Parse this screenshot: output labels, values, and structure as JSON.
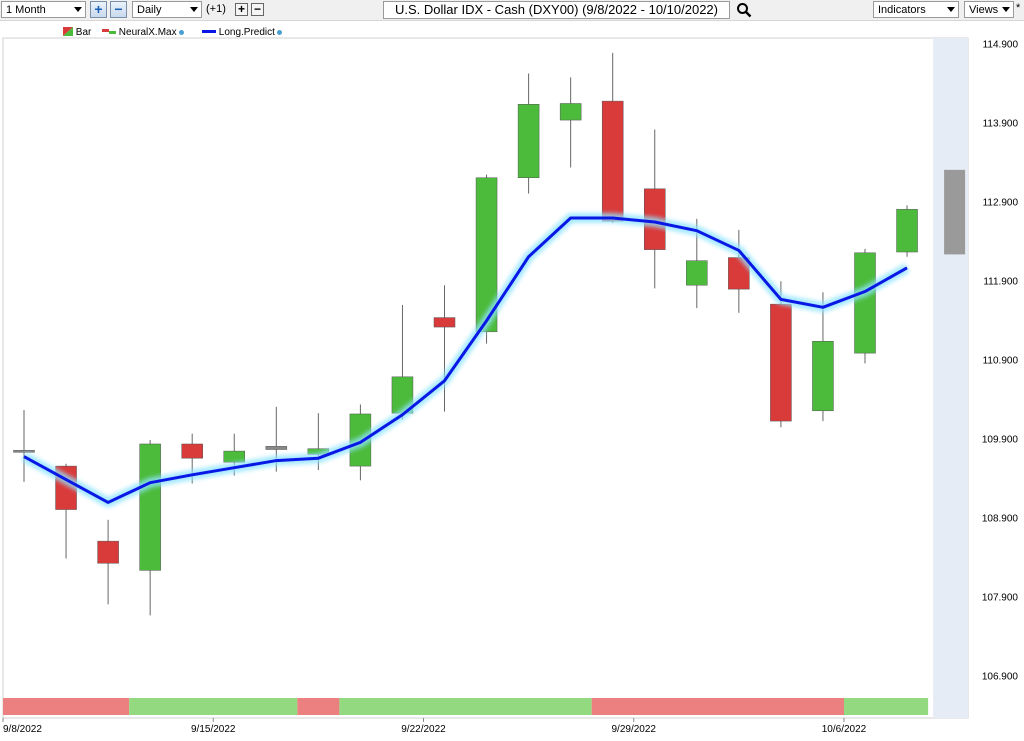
{
  "toolbar": {
    "period": "1 Month",
    "interval": "Daily",
    "offset": "(+1)",
    "title": "U.S. Dollar IDX - Cash (DXY00) (9/8/2022 - 10/10/2022)",
    "indicators_label": "Indicators",
    "views_label": "Views",
    "asterisk": "*"
  },
  "legend": [
    {
      "label": "Bar",
      "icon": "bar-swatch-icon"
    },
    {
      "label": "NeuralX.Max",
      "icon": "neuralx-swatch-icon"
    },
    {
      "label": "Long.Predict",
      "icon": "line-swatch-icon"
    }
  ],
  "colors": {
    "up": "#4cbb3c",
    "down": "#d93a3a",
    "doji": "#888888",
    "predict": "#0a18e6",
    "predict_glow": "#8fe4ff",
    "band_up": "#93d97f",
    "band_down": "#ec8080",
    "future_panel": "#e6ecf5",
    "forecast_box": "#9a9a9a"
  },
  "chart_data": {
    "type": "candlestick",
    "title": "U.S. Dollar IDX - Cash (DXY00) (9/8/2022 - 10/10/2022)",
    "y_ticks": [
      "114.900",
      "113.900",
      "112.900",
      "111.900",
      "110.900",
      "109.900",
      "108.900",
      "107.900",
      "106.900"
    ],
    "ylim": [
      106.9,
      115.45
    ],
    "x_labels": [
      {
        "label": "9/8/2022",
        "index": 0
      },
      {
        "label": "9/15/2022",
        "index": 5
      },
      {
        "label": "9/22/2022",
        "index": 10
      },
      {
        "label": "9/29/2022",
        "index": 15
      },
      {
        "label": "10/6/2022",
        "index": 20
      }
    ],
    "candles": [
      {
        "date": "9/8/2022",
        "open": 109.73,
        "high": 110.26,
        "low": 109.35,
        "close": 109.75
      },
      {
        "date": "9/9/2022",
        "open": 109.55,
        "high": 109.58,
        "low": 108.38,
        "close": 109.0
      },
      {
        "date": "9/12/2022",
        "open": 108.6,
        "high": 108.87,
        "low": 107.8,
        "close": 108.32
      },
      {
        "date": "9/13/2022",
        "open": 108.23,
        "high": 109.88,
        "low": 107.66,
        "close": 109.83
      },
      {
        "date": "9/14/2022",
        "open": 109.83,
        "high": 109.96,
        "low": 109.33,
        "close": 109.65
      },
      {
        "date": "9/15/2022",
        "open": 109.6,
        "high": 109.96,
        "low": 109.43,
        "close": 109.74
      },
      {
        "date": "9/16/2022",
        "open": 109.8,
        "high": 110.3,
        "low": 109.48,
        "close": 109.76
      },
      {
        "date": "9/19/2022",
        "open": 109.7,
        "high": 110.22,
        "low": 109.5,
        "close": 109.77
      },
      {
        "date": "9/20/2022",
        "open": 109.55,
        "high": 110.33,
        "low": 109.37,
        "close": 110.21
      },
      {
        "date": "9/21/2022",
        "open": 110.22,
        "high": 111.59,
        "low": 110.14,
        "close": 110.68
      },
      {
        "date": "9/22/2022",
        "open": 111.43,
        "high": 111.84,
        "low": 110.24,
        "close": 111.31
      },
      {
        "date": "9/23/2022",
        "open": 111.25,
        "high": 113.24,
        "low": 111.1,
        "close": 113.2
      },
      {
        "date": "9/26/2022",
        "open": 113.2,
        "high": 114.52,
        "low": 113.0,
        "close": 114.13
      },
      {
        "date": "9/27/2022",
        "open": 113.93,
        "high": 114.47,
        "low": 113.33,
        "close": 114.14
      },
      {
        "date": "9/28/2022",
        "open": 114.17,
        "high": 114.78,
        "low": 112.63,
        "close": 112.65
      },
      {
        "date": "9/29/2022",
        "open": 113.06,
        "high": 113.81,
        "low": 111.8,
        "close": 112.29
      },
      {
        "date": "9/30/2022",
        "open": 111.84,
        "high": 112.68,
        "low": 111.55,
        "close": 112.15
      },
      {
        "date": "10/3/2022",
        "open": 112.19,
        "high": 112.54,
        "low": 111.49,
        "close": 111.79
      },
      {
        "date": "10/4/2022",
        "open": 111.6,
        "high": 111.89,
        "low": 110.04,
        "close": 110.12
      },
      {
        "date": "10/5/2022",
        "open": 110.25,
        "high": 111.75,
        "low": 110.12,
        "close": 111.13
      },
      {
        "date": "10/6/2022",
        "open": 110.98,
        "high": 112.3,
        "low": 110.85,
        "close": 112.25
      },
      {
        "date": "10/7/2022",
        "open": 112.26,
        "high": 112.85,
        "low": 112.2,
        "close": 112.8
      }
    ],
    "forecast_range": {
      "high": 113.3,
      "low": 112.23
    },
    "long_predict": [
      109.67,
      109.38,
      109.09,
      109.34,
      109.44,
      109.53,
      109.62,
      109.65,
      109.85,
      110.2,
      110.63,
      111.39,
      112.2,
      112.69,
      112.69,
      112.64,
      112.53,
      112.28,
      111.66,
      111.56,
      111.76,
      112.06
    ],
    "signal_band": [
      {
        "from": 0,
        "to": 3,
        "signal": "down"
      },
      {
        "from": 3,
        "to": 7,
        "signal": "up"
      },
      {
        "from": 7,
        "to": 8,
        "signal": "down"
      },
      {
        "from": 8,
        "to": 14,
        "signal": "up"
      },
      {
        "from": 14,
        "to": 20,
        "signal": "down"
      },
      {
        "from": 20,
        "to": 22,
        "signal": "up"
      }
    ],
    "legend_position": "top-left"
  }
}
